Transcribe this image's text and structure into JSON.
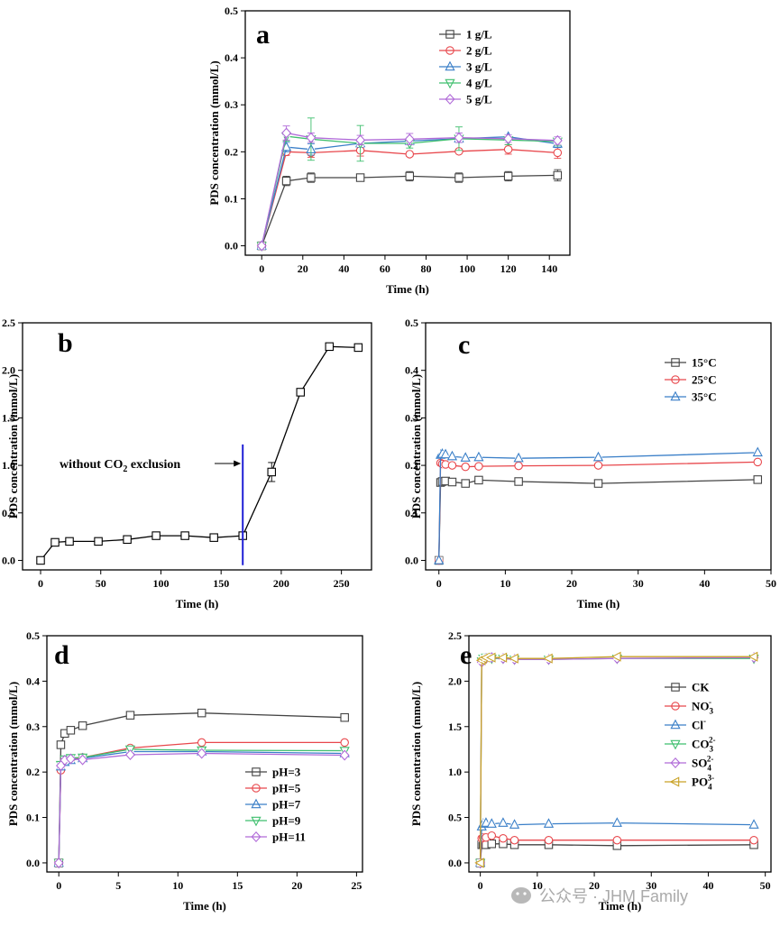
{
  "chart_data": [
    {
      "panel": "a",
      "type": "line",
      "xlabel": "Time (h)",
      "ylabel": "PDS concentration (mmol/L)",
      "xlim": [
        -8,
        150
      ],
      "ylim": [
        -0.02,
        0.5
      ],
      "xticks": [
        0,
        20,
        40,
        60,
        80,
        100,
        120,
        140
      ],
      "yticks": [
        0.0,
        0.1,
        0.2,
        0.3,
        0.4,
        0.5
      ],
      "x_tick_labels": [
        "0",
        "20",
        "40",
        "60",
        "80",
        "100",
        "120",
        "140"
      ],
      "y_tick_labels": [
        "0.0",
        "0.1",
        "0.2",
        "0.3",
        "0.4",
        "0.5"
      ],
      "legend_position": "top-right",
      "series": [
        {
          "name": "1 g/L",
          "color": "#444444",
          "marker": "square",
          "x": [
            0,
            12,
            24,
            48,
            72,
            96,
            120,
            144
          ],
          "y": [
            0,
            0.138,
            0.145,
            0.145,
            0.148,
            0.145,
            0.148,
            0.15
          ],
          "err": [
            0,
            0.01,
            0.01,
            0.004,
            0.01,
            0.01,
            0.01,
            0.012
          ]
        },
        {
          "name": "2 g/L",
          "color": "#e8474c",
          "marker": "circle",
          "x": [
            0,
            12,
            24,
            48,
            72,
            96,
            120,
            144
          ],
          "y": [
            0,
            0.2,
            0.198,
            0.203,
            0.195,
            0.201,
            0.205,
            0.198
          ],
          "err": [
            0,
            0.008,
            0.01,
            0.012,
            0.005,
            0.006,
            0.01,
            0.012
          ]
        },
        {
          "name": "3 g/L",
          "color": "#3a7fc8",
          "marker": "triangle-up",
          "x": [
            0,
            12,
            24,
            48,
            72,
            96,
            120,
            144
          ],
          "y": [
            0,
            0.21,
            0.205,
            0.218,
            0.223,
            0.228,
            0.232,
            0.217
          ],
          "err": [
            0,
            0.01,
            0.012,
            0.008,
            0.01,
            0.008,
            0.006,
            0.008
          ]
        },
        {
          "name": "4 g/L",
          "color": "#3fbf6e",
          "marker": "triangle-down",
          "x": [
            0,
            12,
            24,
            48,
            72,
            96,
            120,
            144
          ],
          "y": [
            0,
            0.233,
            0.227,
            0.218,
            0.218,
            0.228,
            0.225,
            0.222
          ],
          "err": [
            0,
            0.01,
            0.045,
            0.038,
            0.01,
            0.025,
            0.01,
            0.008
          ]
        },
        {
          "name": "5 g/L",
          "color": "#b06ad8",
          "marker": "diamond",
          "x": [
            0,
            12,
            24,
            48,
            72,
            96,
            120,
            144
          ],
          "y": [
            0,
            0.24,
            0.23,
            0.225,
            0.227,
            0.23,
            0.228,
            0.224
          ],
          "err": [
            0,
            0.015,
            0.01,
            0.01,
            0.012,
            0.01,
            0.008,
            0.008
          ]
        }
      ]
    },
    {
      "panel": "b",
      "type": "line",
      "xlabel": "Time (h)",
      "ylabel": "PDS concentration (mmol/L)",
      "xlim": [
        -15,
        275
      ],
      "ylim": [
        -0.1,
        2.5
      ],
      "xticks": [
        0,
        50,
        100,
        150,
        200,
        250
      ],
      "yticks": [
        0.0,
        0.5,
        1.0,
        1.5,
        2.0,
        2.5
      ],
      "x_tick_labels": [
        "0",
        "50",
        "100",
        "150",
        "200",
        "250"
      ],
      "y_tick_labels": [
        "0.0",
        "0.5",
        "1.0",
        "1.5",
        "2.0",
        "2.5"
      ],
      "annotation": {
        "text_before": "without CO",
        "subscript": "2",
        "text_after": " exclusion",
        "line_x": 168,
        "line_y_range": [
          -0.05,
          1.22
        ],
        "arrow_y": 1.02
      },
      "series": [
        {
          "name": "",
          "color": "#000000",
          "marker": "square",
          "x": [
            0,
            12,
            24,
            48,
            72,
            96,
            120,
            144,
            168,
            192,
            216,
            240,
            264
          ],
          "y": [
            0.0,
            0.19,
            0.2,
            0.2,
            0.22,
            0.26,
            0.26,
            0.24,
            0.26,
            0.93,
            1.77,
            2.25,
            2.24
          ],
          "err": [
            0,
            0.03,
            0.01,
            0.01,
            0.01,
            0.02,
            0.02,
            0.01,
            0.02,
            0.1,
            0.02,
            0.02,
            0.02
          ]
        }
      ]
    },
    {
      "panel": "c",
      "type": "line",
      "xlabel": "Time (h)",
      "ylabel": "PDS concentration (mmol/L)",
      "xlim": [
        -2,
        50
      ],
      "ylim": [
        -0.02,
        0.5
      ],
      "xticks": [
        0,
        10,
        20,
        30,
        40,
        50
      ],
      "yticks": [
        0.0,
        0.1,
        0.2,
        0.3,
        0.4,
        0.5
      ],
      "x_tick_labels": [
        "0",
        "10",
        "20",
        "30",
        "40",
        "50"
      ],
      "y_tick_labels": [
        "0.0",
        "0.1",
        "0.2",
        "0.3",
        "0.4",
        "0.5"
      ],
      "legend_position": "top-right",
      "series": [
        {
          "name": "15°C",
          "color": "#444444",
          "marker": "square",
          "x": [
            0,
            0.25,
            0.5,
            1,
            2,
            4,
            6,
            12,
            24,
            48
          ],
          "y": [
            0,
            0.164,
            0.166,
            0.167,
            0.165,
            0.162,
            0.169,
            0.166,
            0.162,
            0.17
          ]
        },
        {
          "name": "25°C",
          "color": "#e8474c",
          "marker": "circle",
          "x": [
            0,
            0.25,
            0.5,
            1,
            2,
            4,
            6,
            12,
            24,
            48
          ],
          "y": [
            0,
            0.205,
            0.203,
            0.202,
            0.2,
            0.197,
            0.198,
            0.199,
            0.2,
            0.207
          ]
        },
        {
          "name": "35°C",
          "color": "#3a7fc8",
          "marker": "triangle-up",
          "x": [
            0,
            0.25,
            0.5,
            1,
            2,
            4,
            6,
            12,
            24,
            48
          ],
          "y": [
            0,
            0.222,
            0.224,
            0.223,
            0.219,
            0.216,
            0.217,
            0.215,
            0.217,
            0.227
          ]
        }
      ]
    },
    {
      "panel": "d",
      "type": "line",
      "xlabel": "Time (h)",
      "ylabel": "PDS concentration (mmol/L)",
      "xlim": [
        -1,
        25.5
      ],
      "ylim": [
        -0.02,
        0.5
      ],
      "xticks": [
        0,
        5,
        10,
        15,
        20,
        25
      ],
      "yticks": [
        0.0,
        0.1,
        0.2,
        0.3,
        0.4,
        0.5
      ],
      "x_tick_labels": [
        "0",
        "5",
        "10",
        "15",
        "20",
        "25"
      ],
      "y_tick_labels": [
        "0.0",
        "0.1",
        "0.2",
        "0.3",
        "0.4",
        "0.5"
      ],
      "legend_position": "bottom-right",
      "series": [
        {
          "name": "pH=3",
          "color": "#444444",
          "marker": "square",
          "x": [
            0,
            0.17,
            0.5,
            1,
            2,
            6,
            12,
            24
          ],
          "y": [
            0,
            0.26,
            0.285,
            0.292,
            0.302,
            0.325,
            0.33,
            0.32
          ]
        },
        {
          "name": "pH=5",
          "color": "#e8474c",
          "marker": "circle",
          "x": [
            0,
            0.17,
            0.5,
            1,
            2,
            6,
            12,
            24
          ],
          "y": [
            0,
            0.204,
            0.224,
            0.228,
            0.232,
            0.253,
            0.265,
            0.265
          ]
        },
        {
          "name": "pH=7",
          "color": "#3a7fc8",
          "marker": "triangle-up",
          "x": [
            0,
            0.17,
            0.5,
            1,
            2,
            6,
            12,
            24
          ],
          "y": [
            0,
            0.212,
            0.222,
            0.226,
            0.23,
            0.245,
            0.245,
            0.241
          ]
        },
        {
          "name": "pH=9",
          "color": "#3fbf6e",
          "marker": "triangle-down",
          "x": [
            0,
            0.17,
            0.5,
            1,
            2,
            6,
            12,
            24
          ],
          "y": [
            0,
            0.216,
            0.228,
            0.231,
            0.232,
            0.25,
            0.248,
            0.247
          ]
        },
        {
          "name": "pH=11",
          "color": "#b06ad8",
          "marker": "diamond",
          "x": [
            0,
            0.17,
            0.5,
            1,
            2,
            6,
            12,
            24
          ],
          "y": [
            0,
            0.214,
            0.226,
            0.229,
            0.227,
            0.238,
            0.241,
            0.237
          ]
        }
      ]
    },
    {
      "panel": "e",
      "type": "line",
      "xlabel": "Time (h)",
      "ylabel": "PDS concentration (mmol/L)",
      "xlim": [
        -2,
        51
      ],
      "ylim": [
        -0.1,
        2.5
      ],
      "xticks": [
        0,
        10,
        20,
        30,
        40,
        50
      ],
      "yticks": [
        0.0,
        0.5,
        1.0,
        1.5,
        2.0,
        2.5
      ],
      "x_tick_labels": [
        "0",
        "10",
        "20",
        "30",
        "40",
        "50"
      ],
      "y_tick_labels": [
        "0.0",
        "0.5",
        "1.0",
        "1.5",
        "2.0",
        "2.5"
      ],
      "legend_position": "right",
      "series": [
        {
          "name": "CK",
          "name_base": "CK",
          "name_sup": "",
          "color": "#444444",
          "marker": "square",
          "x": [
            0,
            0.25,
            0.5,
            1,
            2,
            4,
            6,
            12,
            24,
            48
          ],
          "y": [
            0,
            0.2,
            0.2,
            0.2,
            0.21,
            0.21,
            0.2,
            0.2,
            0.19,
            0.2
          ]
        },
        {
          "name": "NO3-",
          "name_base": "NO",
          "name_sub": "3",
          "name_sup": "-",
          "color": "#e8474c",
          "marker": "circle",
          "x": [
            0,
            0.25,
            0.5,
            1,
            2,
            4,
            6,
            12,
            24,
            48
          ],
          "y": [
            0,
            0.27,
            0.28,
            0.28,
            0.3,
            0.27,
            0.25,
            0.25,
            0.25,
            0.25
          ]
        },
        {
          "name": "Cl-",
          "name_base": "Cl",
          "name_sup": "-",
          "color": "#3a7fc8",
          "marker": "triangle-up",
          "x": [
            0,
            0.25,
            0.5,
            1,
            2,
            4,
            6,
            12,
            24,
            48
          ],
          "y": [
            0,
            0.4,
            0.43,
            0.44,
            0.43,
            0.44,
            0.42,
            0.43,
            0.44,
            0.42
          ]
        },
        {
          "name": "CO32-",
          "name_base": "CO",
          "name_sub": "3",
          "name_sup": "2-",
          "color": "#3fbf6e",
          "marker": "triangle-down",
          "x": [
            0,
            0.25,
            0.5,
            1,
            2,
            4,
            6,
            12,
            24,
            48
          ],
          "y": [
            0,
            2.22,
            2.25,
            2.26,
            2.25,
            2.25,
            2.24,
            2.24,
            2.25,
            2.25
          ]
        },
        {
          "name": "SO42-",
          "name_base": "SO",
          "name_sub": "4",
          "name_sup": "2-",
          "color": "#b06ad8",
          "marker": "diamond",
          "x": [
            0,
            0.25,
            0.5,
            1,
            2,
            4,
            6,
            12,
            24,
            48
          ],
          "y": [
            0,
            2.21,
            2.24,
            2.25,
            2.26,
            2.25,
            2.24,
            2.24,
            2.25,
            2.26
          ]
        },
        {
          "name": "PO43-",
          "name_base": "PO",
          "name_sub": "4",
          "name_sup": "3-",
          "color": "#c9a227",
          "marker": "triangle-left",
          "x": [
            0,
            0.25,
            0.5,
            1,
            2,
            4,
            6,
            12,
            24,
            48
          ],
          "y": [
            0,
            2.23,
            2.25,
            2.26,
            2.26,
            2.26,
            2.25,
            2.25,
            2.27,
            2.27
          ]
        }
      ]
    }
  ],
  "watermark": "公众号 · JHM Family"
}
